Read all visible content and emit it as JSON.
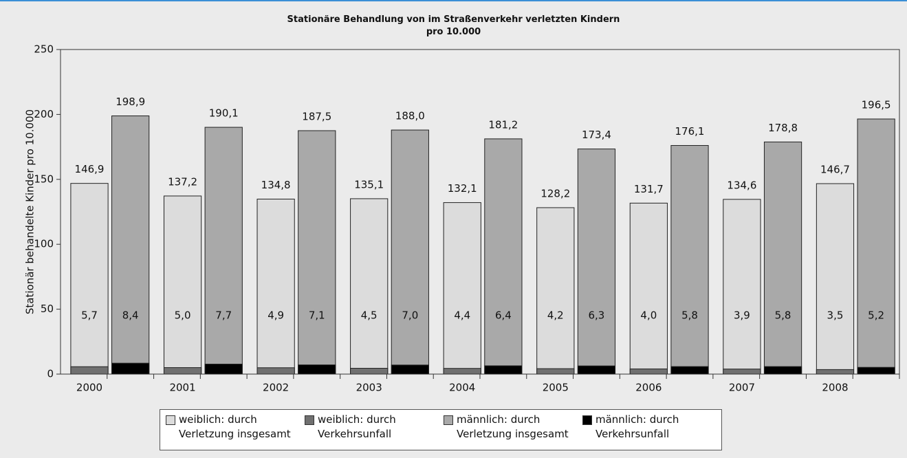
{
  "chart_data": {
    "type": "bar",
    "title": "Stationäre Behandlung von im Straßenverkehr verletzten Kindern\npro 10.000",
    "y_label": "Stationär behandelte Kinder pro 10.000",
    "categories": [
      "2000",
      "2001",
      "2002",
      "2003",
      "2004",
      "2005",
      "2006",
      "2007",
      "2008"
    ],
    "series": [
      {
        "name": "weiblich: durch\nVerletzung insgesamt",
        "color": "#dcdcdc",
        "group": 0,
        "values": [
          146.9,
          137.2,
          134.8,
          135.1,
          132.1,
          128.2,
          131.7,
          134.6,
          146.7
        ],
        "value_labels": [
          "146,9",
          "137,2",
          "134,8",
          "135,1",
          "132,1",
          "128,2",
          "131,7",
          "134,6",
          "146,7"
        ]
      },
      {
        "name": "weiblich: durch\nVerkehrsunfall",
        "color": "#707070",
        "group": 0,
        "values": [
          5.7,
          5.0,
          4.9,
          4.5,
          4.4,
          4.2,
          4.0,
          3.9,
          3.5
        ],
        "value_labels": [
          "5,7",
          "5,0",
          "4,9",
          "4,5",
          "4,4",
          "4,2",
          "4,0",
          "3,9",
          "3,5"
        ]
      },
      {
        "name": "männlich: durch\nVerletzung insgesamt",
        "color": "#a9a9a9",
        "group": 1,
        "values": [
          198.9,
          190.1,
          187.5,
          188.0,
          181.2,
          173.4,
          176.1,
          178.8,
          196.5
        ],
        "value_labels": [
          "198,9",
          "190,1",
          "187,5",
          "188,0",
          "181,2",
          "173,4",
          "176,1",
          "178,8",
          "196,5"
        ]
      },
      {
        "name": "männlich: durch\nVerkehrsunfall",
        "color": "#000000",
        "group": 1,
        "values": [
          8.4,
          7.7,
          7.1,
          7.0,
          6.4,
          6.3,
          5.8,
          5.8,
          5.2
        ],
        "value_labels": [
          "8,4",
          "7,7",
          "7,1",
          "7,0",
          "6,4",
          "6,3",
          "5,8",
          "5,8",
          "5,2"
        ]
      }
    ],
    "ylim": [
      0,
      250
    ],
    "yticks": [
      0,
      50,
      100,
      150,
      200,
      250
    ]
  }
}
